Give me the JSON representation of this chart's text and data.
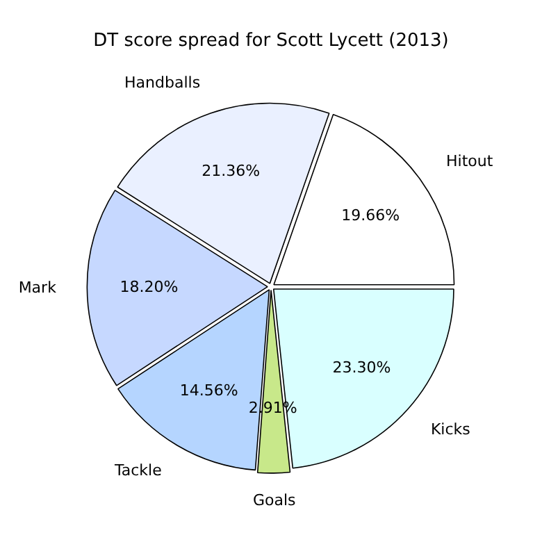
{
  "chart_data": {
    "type": "pie",
    "title": "DT score spread for Scott Lycett (2013)",
    "categories": [
      "Hitout",
      "Handballs",
      "Mark",
      "Tackle",
      "Goals",
      "Kicks"
    ],
    "values": [
      19.66,
      21.36,
      18.2,
      14.56,
      2.91,
      23.3
    ],
    "colors": [
      "#ffffff",
      "#eaf0ff",
      "#c6d8ff",
      "#b5d5ff",
      "#c8e88a",
      "#d9ffff"
    ],
    "value_labels": [
      "19.66%",
      "21.36%",
      "18.20%",
      "14.56%",
      "2.91%",
      "23.30%"
    ],
    "legend": false
  }
}
